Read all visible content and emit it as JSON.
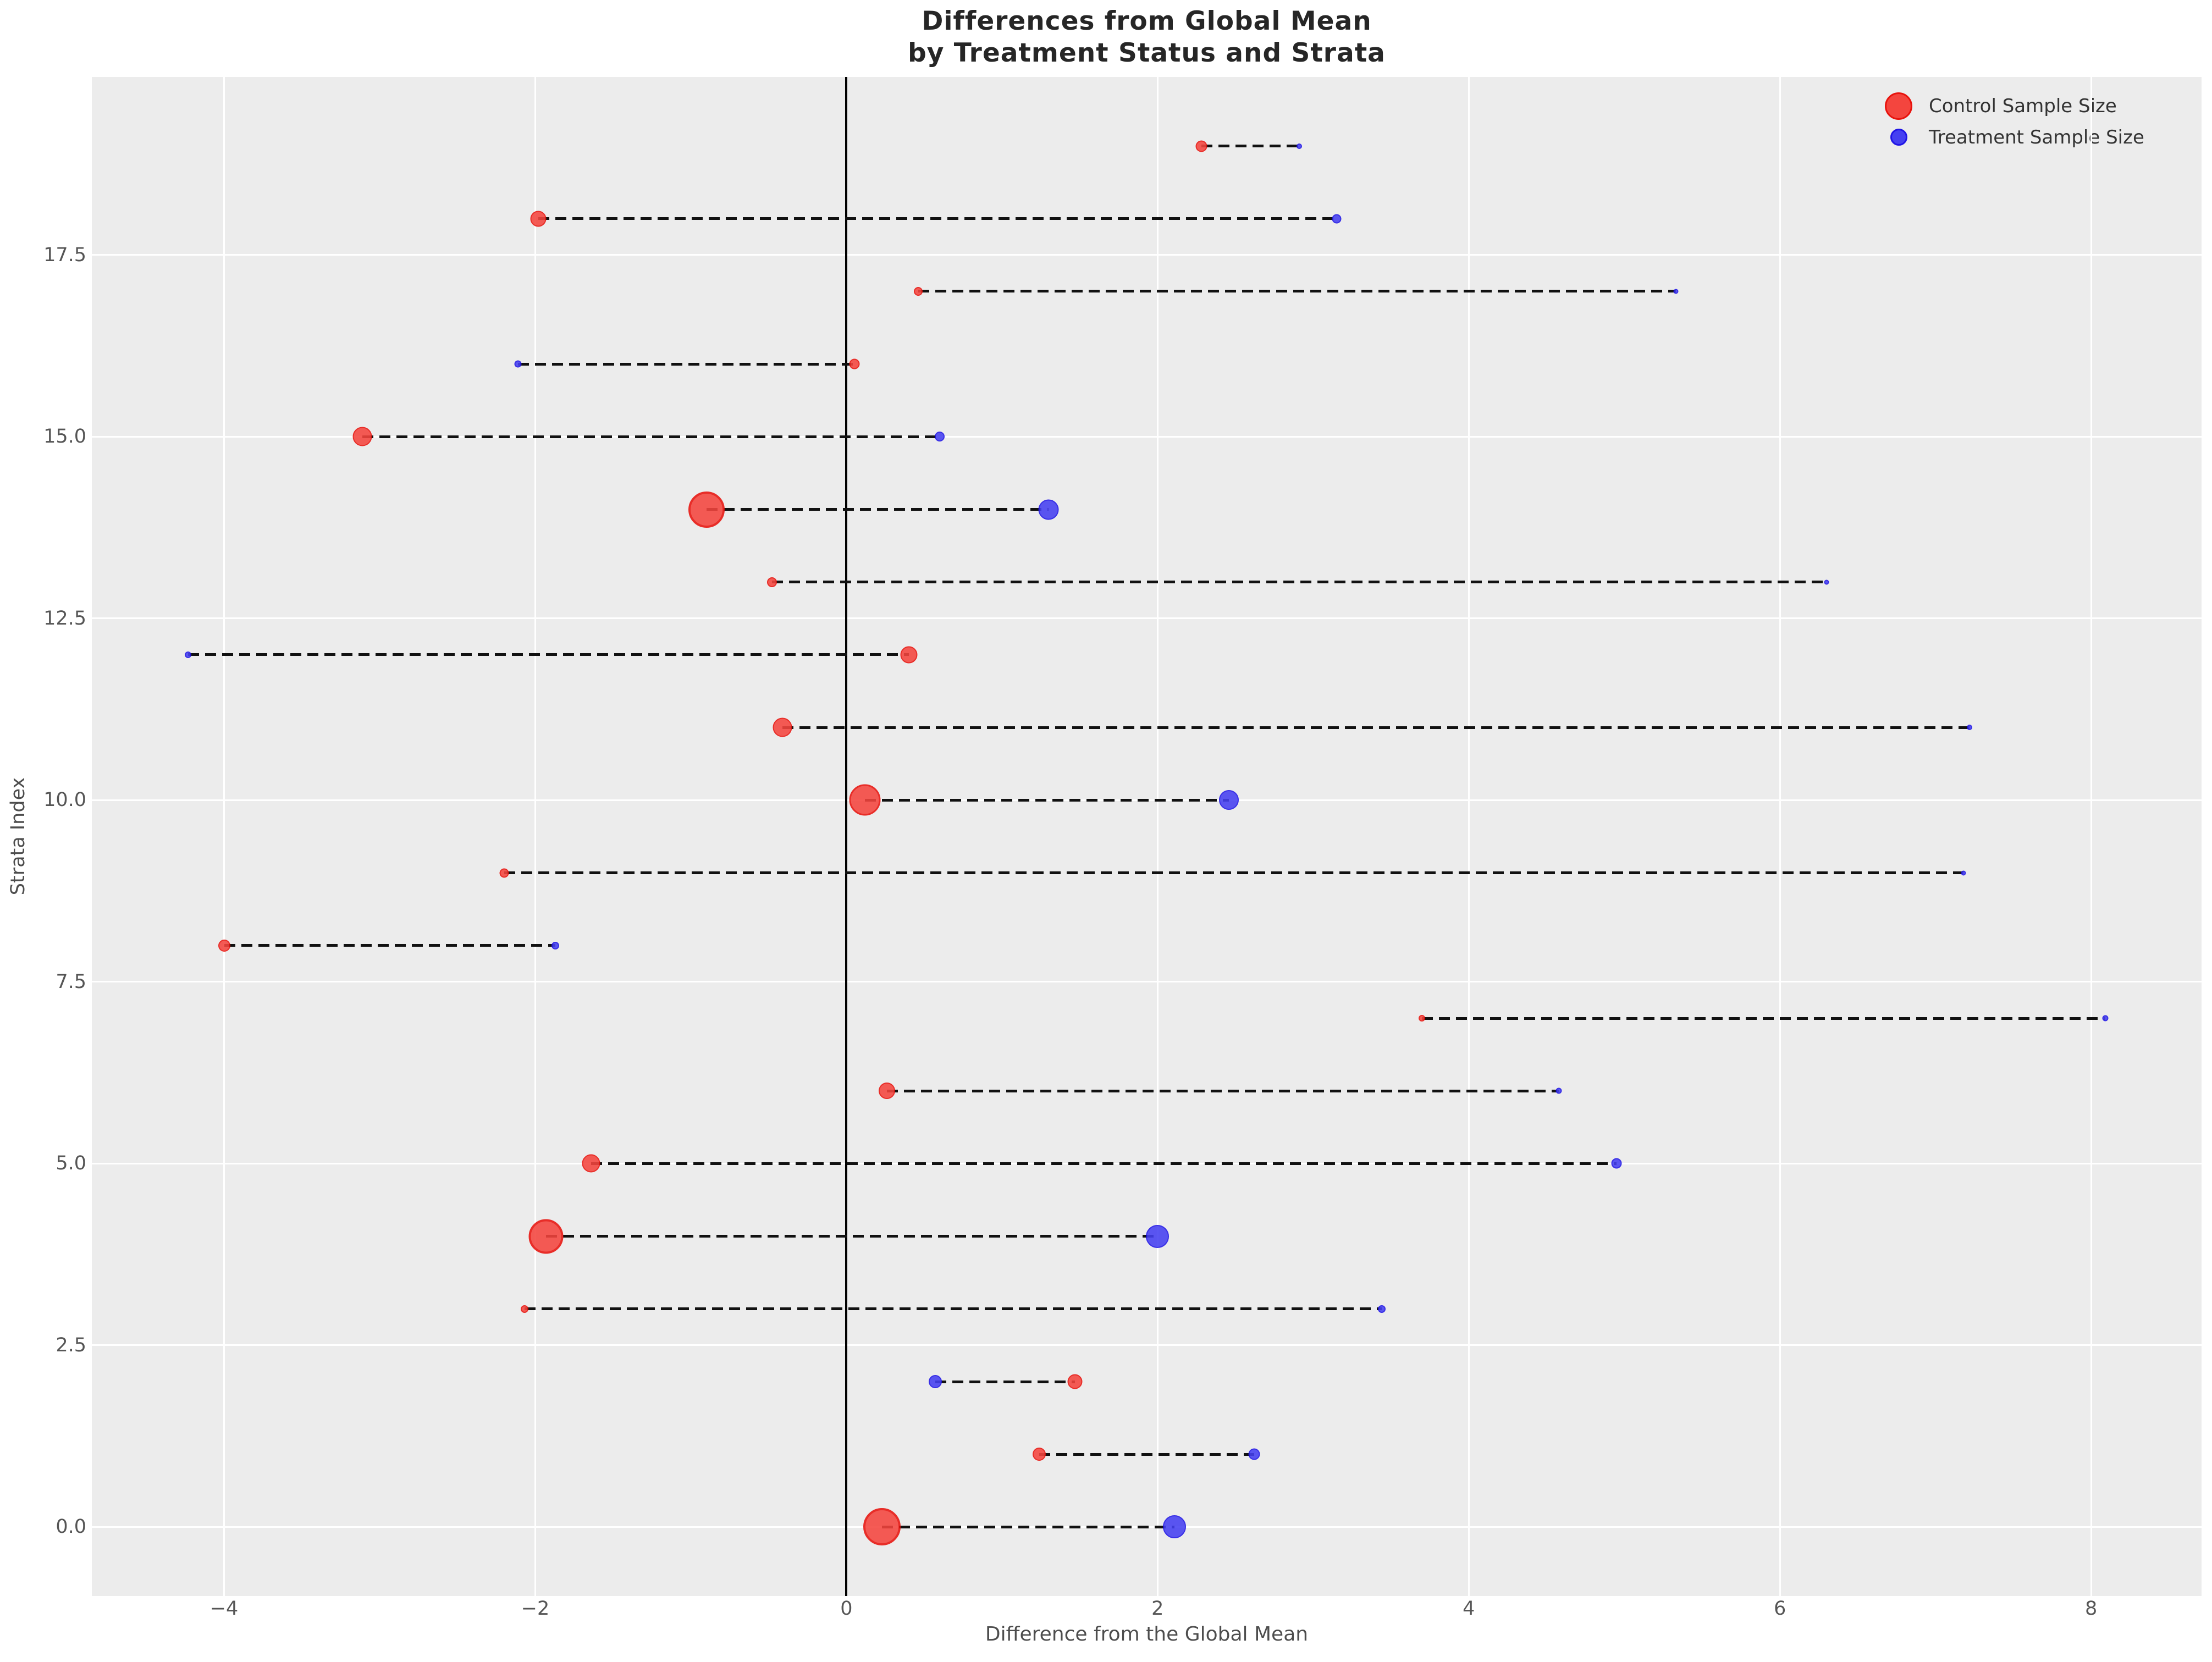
{
  "title": {
    "line1": "Differences from Global Mean",
    "line2": "by Treatment Status and Strata"
  },
  "legend": {
    "control_label": "Control Sample Size",
    "treatment_label": "Treatment Sample Size"
  },
  "axes": {
    "xlabel": "Difference from the Global Mean",
    "ylabel": "Strata Index",
    "x_ticks": [
      {
        "v": -4,
        "label": "−4"
      },
      {
        "v": -2,
        "label": "−2"
      },
      {
        "v": 0,
        "label": "0"
      },
      {
        "v": 2,
        "label": "2"
      },
      {
        "v": 4,
        "label": "4"
      },
      {
        "v": 6,
        "label": "6"
      },
      {
        "v": 8,
        "label": "8"
      }
    ],
    "y_ticks": [
      {
        "v": 0,
        "label": "0.0"
      },
      {
        "v": 2.5,
        "label": "2.5"
      },
      {
        "v": 5,
        "label": "5.0"
      },
      {
        "v": 7.5,
        "label": "7.5"
      },
      {
        "v": 10,
        "label": "10.0"
      },
      {
        "v": 12.5,
        "label": "12.5"
      },
      {
        "v": 15,
        "label": "15.0"
      },
      {
        "v": 17.5,
        "label": "17.5"
      }
    ],
    "xlim": [
      -4.85,
      8.71
    ],
    "ylim": [
      -0.95,
      19.95
    ],
    "grid": true
  },
  "colors": {
    "figure_bg": "#ffffff",
    "plot_bg": "#ececec",
    "grid": "#ffffff",
    "zero_line": "#000000",
    "connector": "#111111",
    "control_fill": "#f4453e",
    "control_edge": "#e8130d",
    "treatment_fill": "#4540f1",
    "treatment_edge": "#2015e6",
    "tick_text": "#555555",
    "title_text": "#262626"
  },
  "chart_data": {
    "type": "scatter",
    "subtype": "dumbbell",
    "x_axis": "Difference from the Global Mean",
    "y_axis": "Strata Index",
    "series_names": [
      "Control",
      "Treatment"
    ],
    "size_legend": [
      "Control Sample Size",
      "Treatment Sample Size"
    ],
    "rows": [
      {
        "strata": 0,
        "control": 0.23,
        "control_size": 68,
        "treatment": 2.11,
        "treatment_size": 42
      },
      {
        "strata": 1,
        "control": 1.24,
        "control_size": 24,
        "treatment": 2.62,
        "treatment_size": 21
      },
      {
        "strata": 2,
        "control": 1.47,
        "control_size": 27,
        "treatment": 0.57,
        "treatment_size": 24
      },
      {
        "strata": 3,
        "control": -2.07,
        "control_size": 14,
        "treatment": 3.44,
        "treatment_size": 14
      },
      {
        "strata": 4,
        "control": -1.93,
        "control_size": 63,
        "treatment": 2.0,
        "treatment_size": 42
      },
      {
        "strata": 5,
        "control": -1.64,
        "control_size": 33,
        "treatment": 4.95,
        "treatment_size": 19
      },
      {
        "strata": 6,
        "control": 0.26,
        "control_size": 30,
        "treatment": 4.58,
        "treatment_size": 11
      },
      {
        "strata": 7,
        "control": 3.7,
        "control_size": 12,
        "treatment": 8.09,
        "treatment_size": 11
      },
      {
        "strata": 8,
        "control": -4.0,
        "control_size": 22,
        "treatment": -1.87,
        "treatment_size": 14
      },
      {
        "strata": 9,
        "control": -2.2,
        "control_size": 17,
        "treatment": 7.18,
        "treatment_size": 9
      },
      {
        "strata": 10,
        "control": 0.12,
        "control_size": 57,
        "treatment": 2.46,
        "treatment_size": 36
      },
      {
        "strata": 11,
        "control": -0.41,
        "control_size": 35,
        "treatment": 7.22,
        "treatment_size": 10
      },
      {
        "strata": 12,
        "control": 0.4,
        "control_size": 31,
        "treatment": -4.23,
        "treatment_size": 12
      },
      {
        "strata": 13,
        "control": -0.48,
        "control_size": 18,
        "treatment": 6.3,
        "treatment_size": 9
      },
      {
        "strata": 14,
        "control": -0.9,
        "control_size": 66,
        "treatment": 1.3,
        "treatment_size": 37
      },
      {
        "strata": 15,
        "control": -3.11,
        "control_size": 35,
        "treatment": 0.6,
        "treatment_size": 18
      },
      {
        "strata": 16,
        "control": 0.05,
        "control_size": 19,
        "treatment": -2.11,
        "treatment_size": 13
      },
      {
        "strata": 17,
        "control": 0.46,
        "control_size": 16,
        "treatment": 5.33,
        "treatment_size": 9
      },
      {
        "strata": 18,
        "control": -1.98,
        "control_size": 29,
        "treatment": 3.15,
        "treatment_size": 17
      },
      {
        "strata": 19,
        "control": 2.28,
        "control_size": 21,
        "treatment": 2.91,
        "treatment_size": 10
      }
    ]
  }
}
